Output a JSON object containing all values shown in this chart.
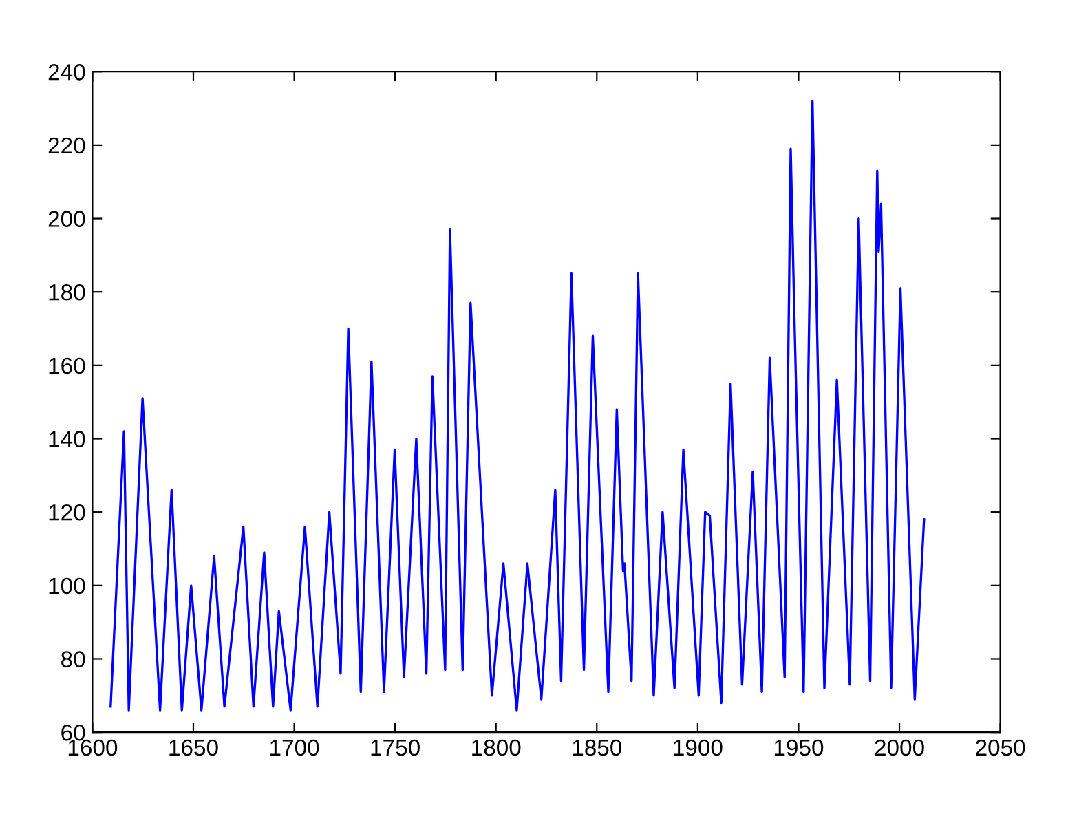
{
  "chart_data": {
    "type": "line",
    "xlim": [
      1600,
      2050
    ],
    "xticks": [
      1600,
      1650,
      1700,
      1750,
      1800,
      1850,
      1900,
      1950,
      2000,
      2050
    ],
    "ylim": [
      60,
      240
    ],
    "yticks": [
      60,
      80,
      100,
      120,
      140,
      160,
      180,
      200,
      220,
      240
    ],
    "grid": false,
    "marker": "none",
    "line_style": "solid",
    "series": [
      {
        "color": "#0000ff",
        "x": [
          1609,
          1615.6,
          1618,
          1624.8,
          1633.5,
          1639.2,
          1644.3,
          1648.9,
          1654,
          1660.3,
          1665.4,
          1674.8,
          1679.8,
          1685.1,
          1689.5,
          1692.4,
          1698.2,
          1705.3,
          1711.5,
          1717.4,
          1723,
          1726.8,
          1733,
          1738.3,
          1744.5,
          1749.8,
          1754.4,
          1760.5,
          1765.5,
          1768.5,
          1774.8,
          1777.2,
          1783.5,
          1787.4,
          1798,
          1803.7,
          1810.3,
          1815.6,
          1822.5,
          1829.4,
          1832.3,
          1837.4,
          1843.6,
          1848,
          1855.7,
          1859.9,
          1863,
          1863.7,
          1867.2,
          1870.4,
          1878.2,
          1882.6,
          1888.5,
          1892.9,
          1900.5,
          1903.7,
          1906,
          1911.7,
          1916.3,
          1922,
          1927.3,
          1931.8,
          1935.7,
          1943.1,
          1946.1,
          1947.9,
          1952.5,
          1956.9,
          1962.8,
          1969,
          1975.4,
          1979.8,
          1985.5,
          1989,
          1989.7,
          1990.9,
          1995.9,
          2000.5,
          2007.6,
          2012.2
        ],
        "values": [
          67,
          142,
          66,
          151,
          66,
          126,
          66,
          100,
          66,
          108,
          67,
          116,
          67,
          109,
          67,
          93,
          66,
          116,
          67,
          120,
          76,
          170,
          71,
          161,
          71,
          137,
          75,
          140,
          76,
          157,
          77,
          197,
          77,
          177,
          70,
          106,
          66,
          106,
          69,
          126,
          74,
          185,
          77,
          168,
          71,
          148,
          104,
          106,
          74,
          185,
          70,
          120,
          72,
          137,
          70,
          120,
          119,
          68,
          155,
          73,
          131,
          71,
          162,
          75,
          219,
          174,
          71,
          232,
          72,
          156,
          73,
          200,
          74,
          213,
          191,
          204,
          72,
          181,
          69,
          118
        ]
      }
    ]
  }
}
